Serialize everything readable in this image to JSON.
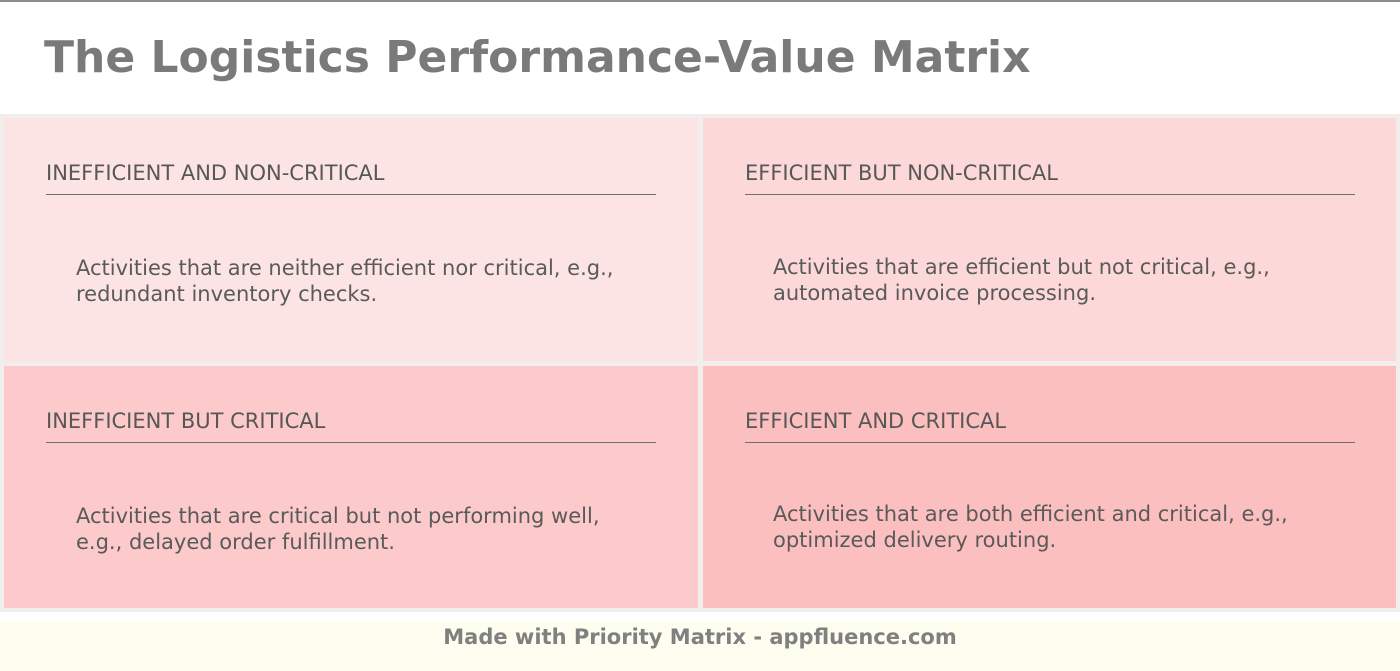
{
  "title": "The Logistics Performance-Value Matrix",
  "colors": {
    "top_left": "#fde4e4",
    "top_right": "#fdd8d8",
    "bottom_left": "#fccaca",
    "bottom_right": "#fcbfbf",
    "footer_bg": "#fdfdf0",
    "text": "#575757"
  },
  "quadrants": {
    "top_left": {
      "heading": "INEFFICIENT AND NON-CRITICAL",
      "description": "Activities that are neither efficient nor critical, e.g., redundant inventory checks."
    },
    "top_right": {
      "heading": "EFFICIENT BUT NON-CRITICAL",
      "description": "Activities that are efficient but not critical, e.g., automated invoice processing."
    },
    "bottom_left": {
      "heading": "INEFFICIENT BUT CRITICAL",
      "description": "Activities that are critical but not performing well, e.g., delayed order fulfillment."
    },
    "bottom_right": {
      "heading": "EFFICIENT AND CRITICAL",
      "description": "Activities that are both efficient and critical, e.g., optimized delivery routing."
    }
  },
  "footer": {
    "text": "Made with Priority Matrix - appfluence.com"
  }
}
